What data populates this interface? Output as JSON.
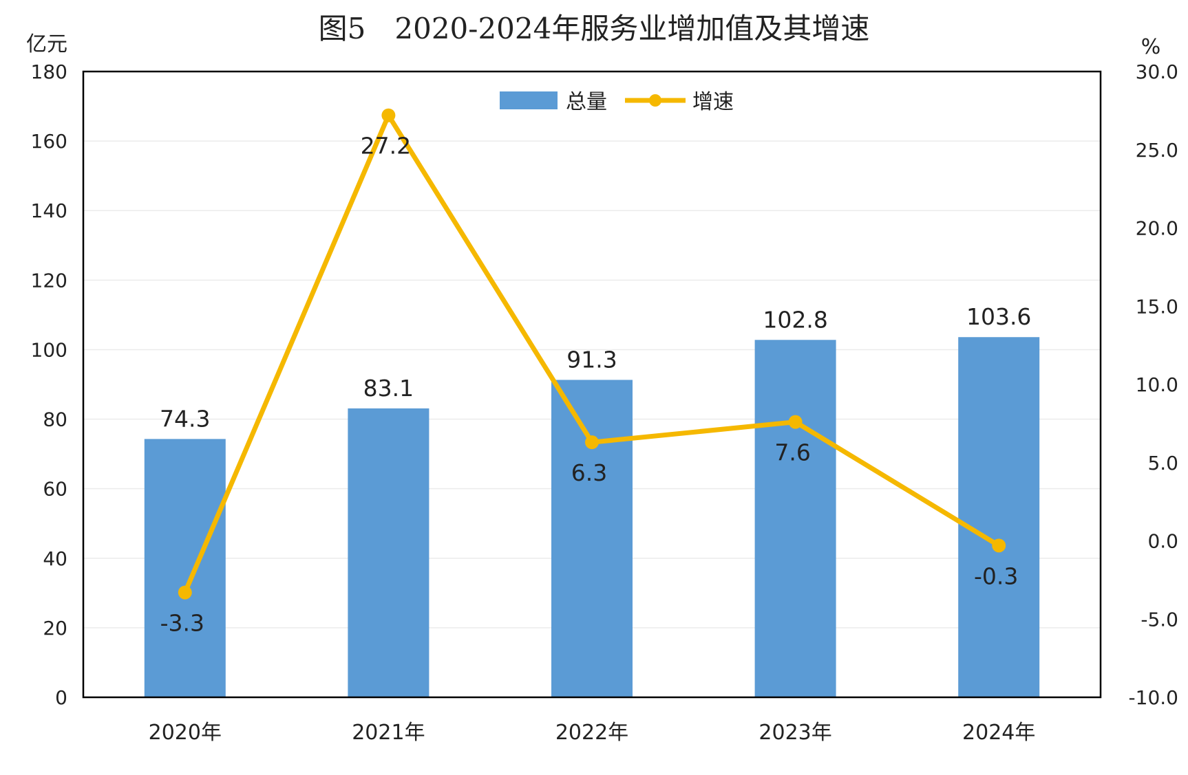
{
  "chart_data": {
    "type": "bar+line",
    "title": "图5　2020-2024年服务业增加值及其增速",
    "categories": [
      "2020年",
      "2021年",
      "2022年",
      "2023年",
      "2024年"
    ],
    "series": [
      {
        "name": "总量",
        "type": "bar",
        "axis": "left",
        "color": "#5B9BD5",
        "values": [
          74.3,
          83.1,
          91.3,
          102.8,
          103.6
        ],
        "labels": [
          "74.3",
          "83.1",
          "91.3",
          "102.8",
          "103.6"
        ]
      },
      {
        "name": "增速",
        "type": "line",
        "axis": "right",
        "color": "#F5B800",
        "values": [
          -3.3,
          27.2,
          6.3,
          7.6,
          -0.3
        ],
        "labels": [
          "-3.3",
          "27.2",
          "6.3",
          "7.6",
          "-0.3"
        ]
      }
    ],
    "y_left": {
      "unit": "亿元",
      "range": [
        0,
        180
      ],
      "ticks": [
        "0",
        "20",
        "40",
        "60",
        "80",
        "100",
        "120",
        "140",
        "160",
        "180"
      ]
    },
    "y_right": {
      "unit": "%",
      "range": [
        -10,
        30
      ],
      "ticks": [
        "-10.0",
        "-5.0",
        "0.0",
        "5.0",
        "10.0",
        "15.0",
        "20.0",
        "25.0",
        "30.0"
      ]
    },
    "grid": true,
    "legend": "top-center"
  }
}
